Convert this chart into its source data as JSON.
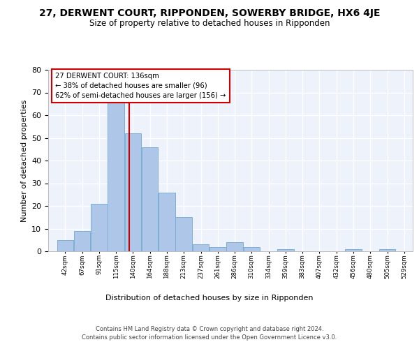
{
  "title": "27, DERWENT COURT, RIPPONDEN, SOWERBY BRIDGE, HX6 4JE",
  "subtitle": "Size of property relative to detached houses in Ripponden",
  "xlabel": "Distribution of detached houses by size in Ripponden",
  "ylabel": "Number of detached properties",
  "bar_values": [
    5,
    9,
    21,
    68,
    52,
    46,
    26,
    15,
    3,
    2,
    4,
    2,
    0,
    1,
    0,
    0,
    0,
    1,
    0,
    1
  ],
  "bar_labels": [
    "42sqm",
    "67sqm",
    "91sqm",
    "115sqm",
    "140sqm",
    "164sqm",
    "188sqm",
    "213sqm",
    "237sqm",
    "261sqm",
    "286sqm",
    "310sqm",
    "334sqm",
    "359sqm",
    "383sqm",
    "407sqm",
    "432sqm",
    "456sqm",
    "480sqm",
    "505sqm",
    "529sqm"
  ],
  "bar_color": "#aec6e8",
  "bar_edge_color": "#7bafd4",
  "property_line_label": "27 DERWENT COURT: 136sqm",
  "annotation_line1": "← 38% of detached houses are smaller (96)",
  "annotation_line2": "62% of semi-detached houses are larger (156) →",
  "annotation_box_color": "#ffffff",
  "annotation_box_edge": "#cc0000",
  "vline_color": "#cc0000",
  "vline_x": 136,
  "ylim": [
    0,
    80
  ],
  "yticks": [
    0,
    10,
    20,
    30,
    40,
    50,
    60,
    70,
    80
  ],
  "bin_width": 25,
  "background_color": "#eef2fb",
  "footer_line1": "Contains HM Land Registry data © Crown copyright and database right 2024.",
  "footer_line2": "Contains public sector information licensed under the Open Government Licence v3.0."
}
